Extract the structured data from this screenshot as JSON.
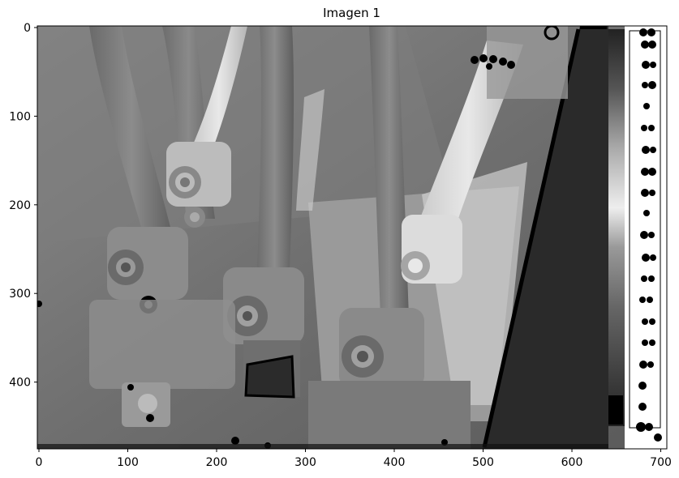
{
  "figure": {
    "title": "Imagen 1"
  },
  "axes": {
    "x_ticks": [
      "0",
      "100",
      "200",
      "300",
      "400",
      "500",
      "600",
      "700"
    ],
    "y_ticks": [
      "0",
      "100",
      "200",
      "300",
      "400"
    ],
    "x_range": [
      0,
      705
    ],
    "y_range": [
      0,
      480
    ]
  },
  "image": {
    "colormap": "gray",
    "description_tags": [
      "thermal-style grayscale",
      "electrical terminals",
      "cables",
      "lugs"
    ]
  },
  "colors": {
    "frame": "#000000",
    "background": "#ffffff",
    "dark_panel": "#2a2a2a"
  }
}
